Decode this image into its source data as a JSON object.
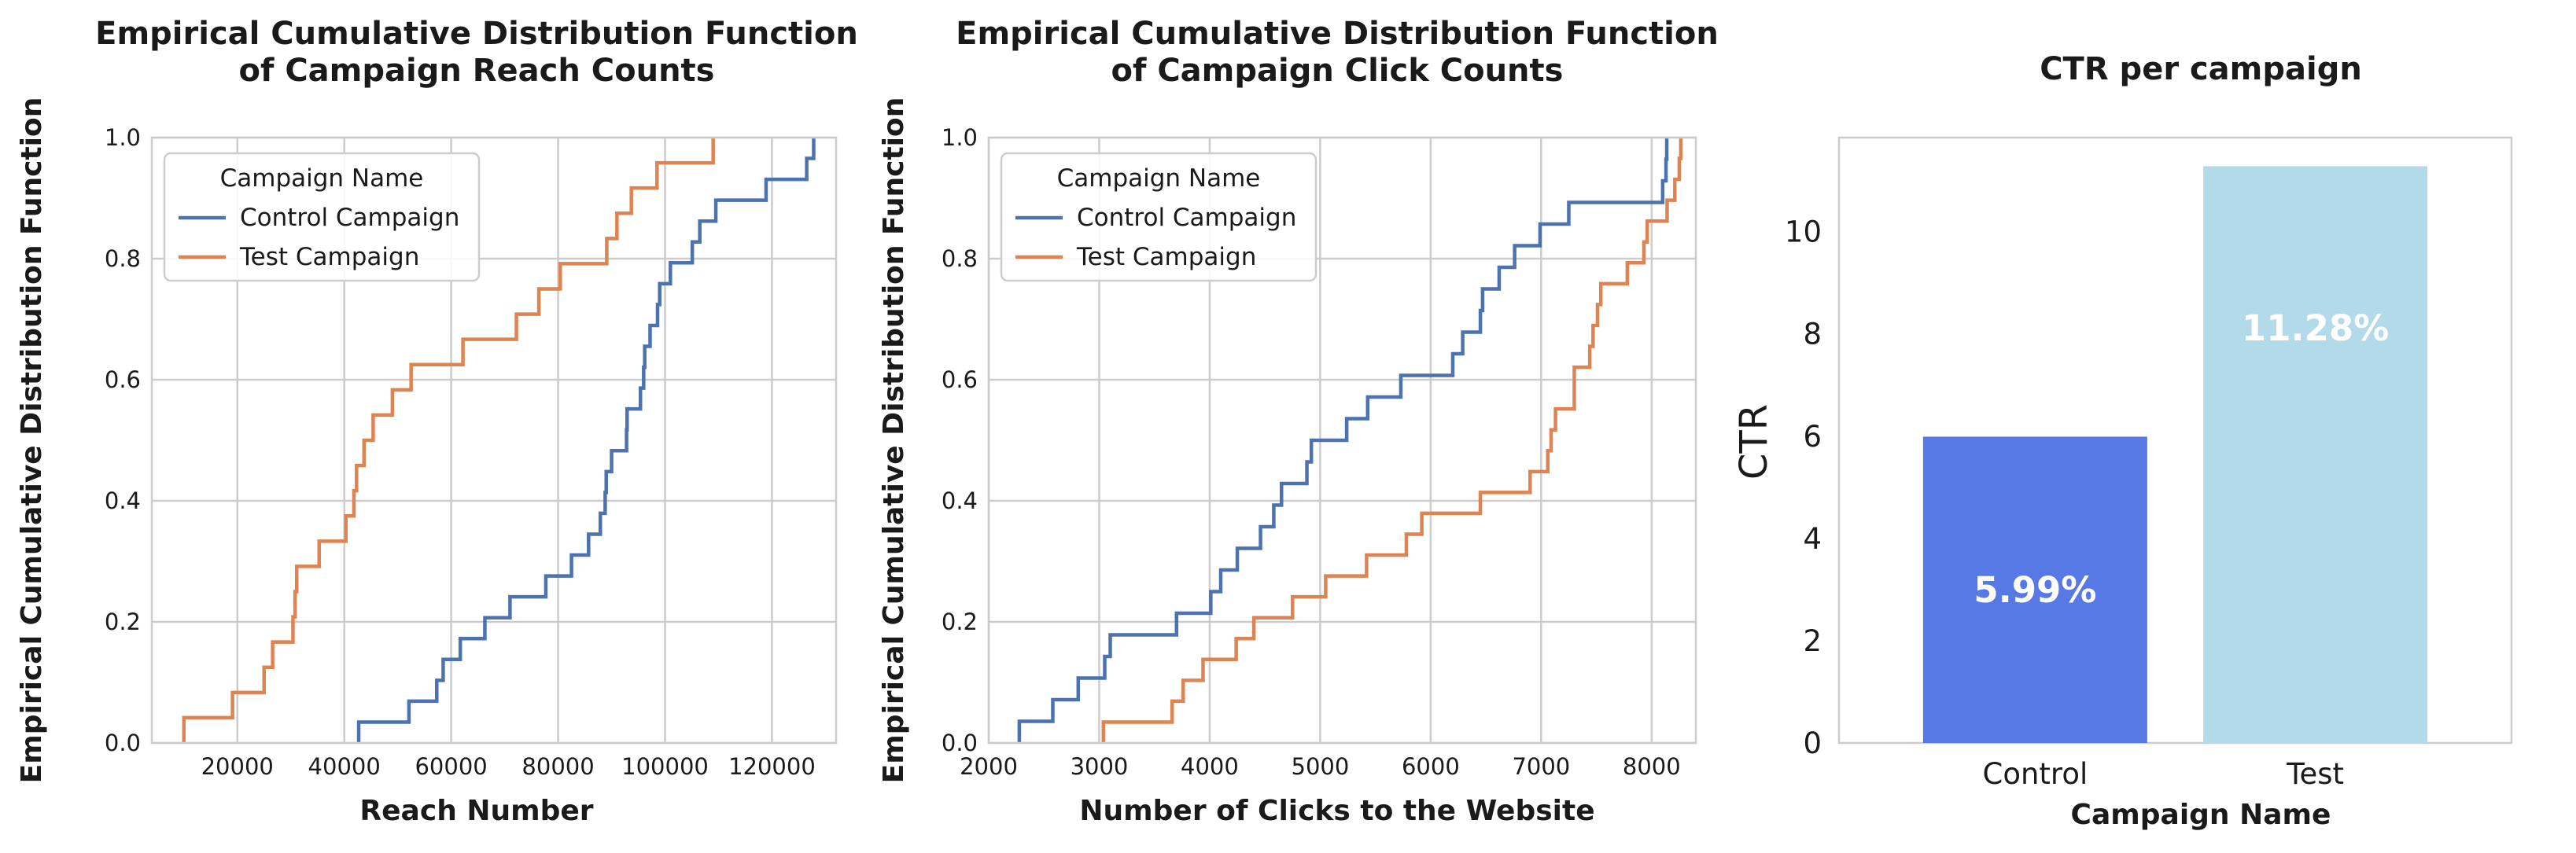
{
  "chart_data": [
    {
      "type": "line",
      "subtype": "ecdf-step",
      "title": "Empirical Cumulative Distribution Function\nof Campaign Reach Counts",
      "xlabel": "Reach Number",
      "ylabel": "Empirical Cumulative Distribution Function",
      "ylabel_color": "#1a1a1a",
      "xlim": [
        4000,
        132000
      ],
      "ylim": [
        0,
        1
      ],
      "xticks": [
        20000,
        40000,
        60000,
        80000,
        100000,
        120000
      ],
      "yticks": [
        0.0,
        0.2,
        0.4,
        0.6,
        0.8,
        1.0
      ],
      "grid": true,
      "legend": {
        "title": "Campaign Name",
        "placement": "upper-left"
      },
      "series": [
        {
          "name": "Control Campaign",
          "color": "#4c72b0",
          "x": [
            42700,
            52100,
            57300,
            58500,
            61700,
            66300,
            71000,
            77700,
            82500,
            85700,
            87900,
            88800,
            89000,
            90000,
            92800,
            92900,
            95400,
            96000,
            96200,
            97200,
            98600,
            99000,
            101000,
            105100,
            106500,
            109500,
            118900,
            126500,
            127800
          ]
        },
        {
          "name": "Test Campaign",
          "color": "#dd8452",
          "x": [
            10000,
            19100,
            25000,
            26600,
            30400,
            30800,
            31100,
            35300,
            40300,
            41800,
            42300,
            43700,
            45400,
            49000,
            52500,
            62200,
            72200,
            76400,
            80400,
            89100,
            91000,
            93700,
            98500,
            109000
          ]
        }
      ]
    },
    {
      "type": "line",
      "subtype": "ecdf-step",
      "title": "Empirical Cumulative Distribution Function\nof Campaign Click Counts",
      "xlabel": "Number of Clicks to the Website",
      "ylabel": "Empirical Cumulative Distribution Function",
      "ylabel_color": "#1ab5ab",
      "xlim": [
        2000,
        8400
      ],
      "ylim": [
        0,
        1
      ],
      "xticks": [
        2000,
        3000,
        4000,
        5000,
        6000,
        7000,
        8000
      ],
      "yticks": [
        0.0,
        0.2,
        0.4,
        0.6,
        0.8,
        1.0
      ],
      "grid": true,
      "legend": {
        "title": "Campaign Name",
        "placement": "upper-left"
      },
      "series": [
        {
          "name": "Control Campaign",
          "color": "#4c72b0",
          "x": [
            2277,
            2580,
            2810,
            3050,
            3100,
            3700,
            4010,
            4100,
            4250,
            4460,
            4580,
            4650,
            4880,
            4920,
            5240,
            5430,
            5730,
            6200,
            6290,
            6450,
            6470,
            6620,
            6760,
            6990,
            7250,
            8100,
            8130,
            8137
          ]
        },
        {
          "name": "Test Campaign",
          "color": "#dd8452",
          "x": [
            3038,
            3660,
            3760,
            3940,
            4240,
            4400,
            4750,
            5050,
            5420,
            5780,
            5920,
            6450,
            6900,
            7060,
            7090,
            7130,
            7300,
            7300,
            7440,
            7470,
            7510,
            7540,
            7780,
            7930,
            7960,
            8140,
            8210,
            8250,
            8264
          ]
        }
      ]
    },
    {
      "type": "bar",
      "title": "CTR per campaign",
      "xlabel": "Campaign Name",
      "ylabel": "CTR",
      "categories": [
        "Control",
        "Test"
      ],
      "values": [
        5.99,
        11.28
      ],
      "data_labels": [
        "5.99%",
        "11.28%"
      ],
      "colors": [
        "#5779e6",
        "#b3dae8"
      ],
      "ylim": [
        0,
        11.84
      ],
      "yticks": [
        0,
        2,
        4,
        6,
        8,
        10
      ],
      "grid": false
    }
  ]
}
